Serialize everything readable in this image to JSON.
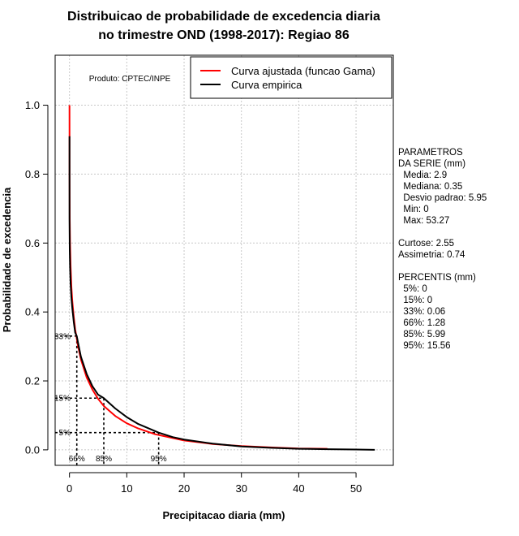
{
  "chart_data": {
    "type": "line",
    "title": [
      "Distribuicao de probabilidade de excedencia diaria",
      "no trimestre OND (1998-2017): Regiao 86"
    ],
    "xlabel": "Precipitacao diaria (mm)",
    "ylabel": "Probabilidade de excedencia",
    "xlim": [
      -2.5,
      56.5
    ],
    "ylim": [
      -0.045,
      1.145
    ],
    "x_ticks": [
      0,
      10,
      20,
      30,
      40,
      50
    ],
    "y_ticks": [
      0.0,
      0.2,
      0.4,
      0.6,
      0.8,
      1.0
    ],
    "x_tick_labels": [
      "0",
      "10",
      "20",
      "30",
      "40",
      "50"
    ],
    "y_tick_labels": [
      "0.0",
      "0.2",
      "0.4",
      "0.6",
      "0.8",
      "1.0"
    ],
    "grid": true,
    "product_label": "Produto: CPTEC/INPE",
    "legend": {
      "position": "top-right",
      "entries": [
        {
          "label": "Curva ajustada (funcao Gama)",
          "color": "#ff0000"
        },
        {
          "label": "Curva empirica",
          "color": "#000000"
        }
      ]
    },
    "series": [
      {
        "name": "Curva ajustada (funcao Gama)",
        "color": "#ff0000",
        "x": [
          0.0,
          0.02,
          0.05,
          0.1,
          0.2,
          0.35,
          0.5,
          0.75,
          1.0,
          1.5,
          2.0,
          3.0,
          4.0,
          5.0,
          6.0,
          8.0,
          10.0,
          12.0,
          15.0,
          20.0,
          25.0,
          30.0,
          35.0,
          40.0,
          45.0
        ],
        "y": [
          1.0,
          0.78,
          0.67,
          0.6,
          0.53,
          0.47,
          0.43,
          0.385,
          0.35,
          0.3,
          0.262,
          0.21,
          0.175,
          0.148,
          0.127,
          0.098,
          0.077,
          0.062,
          0.045,
          0.027,
          0.017,
          0.011,
          0.007,
          0.004,
          0.003
        ]
      },
      {
        "name": "Curva empirica",
        "color": "#000000",
        "x": [
          0.0,
          0.0,
          0.05,
          0.1,
          0.2,
          0.35,
          0.5,
          0.75,
          1.0,
          1.28,
          1.5,
          2.0,
          3.0,
          4.0,
          5.0,
          5.99,
          7.0,
          8.0,
          10.0,
          12.0,
          15.56,
          18.0,
          20.0,
          25.0,
          30.0,
          35.0,
          40.0,
          45.0,
          50.0,
          53.27
        ],
        "y": [
          0.91,
          0.67,
          0.58,
          0.53,
          0.48,
          0.44,
          0.41,
          0.37,
          0.34,
          0.33,
          0.31,
          0.27,
          0.22,
          0.185,
          0.16,
          0.15,
          0.135,
          0.12,
          0.095,
          0.075,
          0.05,
          0.037,
          0.03,
          0.018,
          0.01,
          0.006,
          0.003,
          0.002,
          0.001,
          0.0
        ]
      }
    ],
    "percentile_guides": [
      {
        "label": "33%",
        "y": 0.33,
        "x": 1.28,
        "x_label": "66%"
      },
      {
        "label": "15%",
        "y": 0.15,
        "x": 5.99,
        "x_label": "85%"
      },
      {
        "label": "5%",
        "y": 0.05,
        "x": 15.56,
        "x_label": "95%"
      }
    ]
  },
  "stats_panel": [
    "PARAMETROS",
    "DA SERIE (mm)",
    "  Media: 2.9",
    "  Mediana: 0.35",
    "  Desvio padrao: 5.95",
    "  Min: 0",
    "  Max: 53.27",
    "",
    "Curtose: 2.55",
    "Assimetria: 0.74",
    "",
    "PERCENTIS (mm)",
    "  5%: 0",
    "  15%: 0",
    "  33%: 0.06",
    "  66%: 1.28",
    "  85%: 5.99",
    "  95%: 15.56"
  ]
}
